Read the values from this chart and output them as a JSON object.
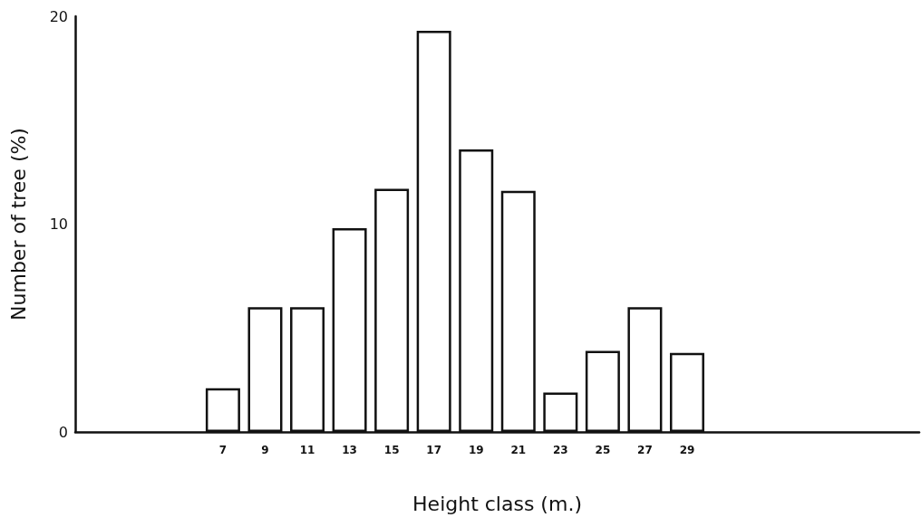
{
  "chart_data": {
    "type": "bar",
    "xlabel": "Height class (m.)",
    "ylabel": "Number of tree (%)",
    "x": [
      7,
      9,
      11,
      13,
      15,
      17,
      19,
      21,
      23,
      25,
      27,
      29
    ],
    "values": [
      2.1,
      6.0,
      6.0,
      9.8,
      11.7,
      19.3,
      13.6,
      11.6,
      1.9,
      3.9,
      6.0,
      3.8
    ],
    "color": "#ffffff",
    "xlim": [
      0,
      40
    ],
    "xticks": [
      7,
      9,
      11,
      13,
      15,
      17,
      19,
      21,
      23,
      25,
      27,
      29
    ],
    "ylim": [
      0,
      20
    ],
    "yticks": [
      0,
      10,
      20
    ],
    "grid": false
  }
}
